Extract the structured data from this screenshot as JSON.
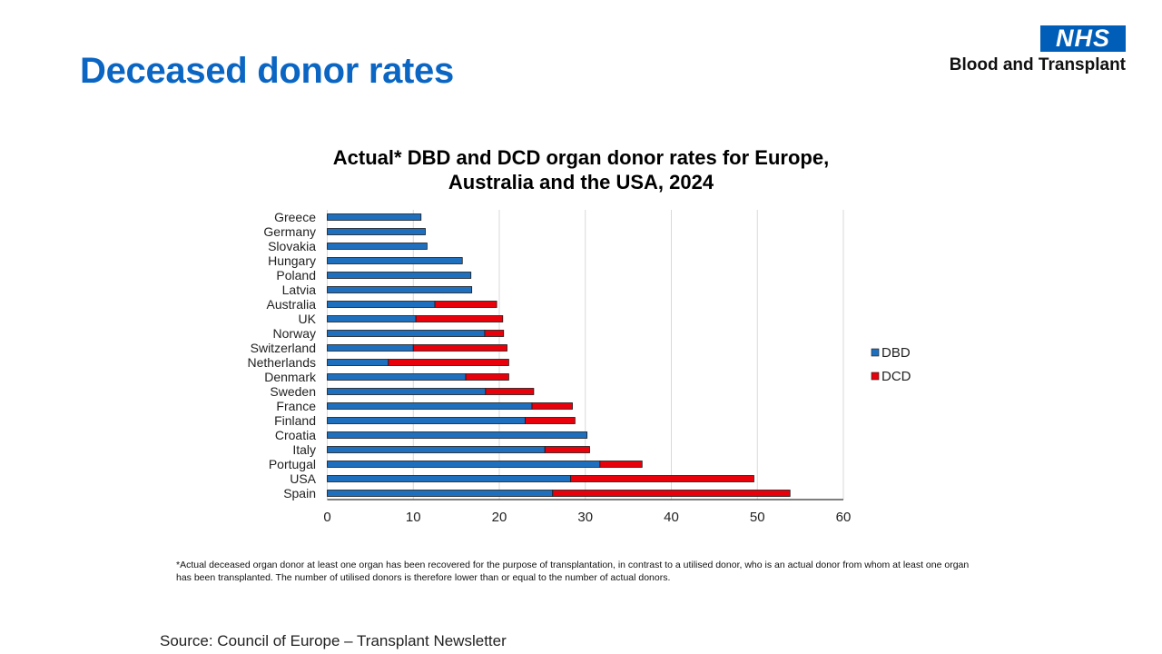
{
  "slide": {
    "title": "Deceased donor rates",
    "logo": {
      "badge": "NHS",
      "name": "Blood and Transplant"
    },
    "footnote": "*Actual deceased organ donor at least one organ has been recovered for the purpose of transplantation, in contrast to a utilised donor, who is an actual donor from whom at least one organ has been transplanted. The number of utilised donors is therefore lower than or equal to the number of actual donors.",
    "source": "Source: Council of Europe – Transplant Newsletter"
  },
  "chart_data": {
    "type": "bar",
    "orientation": "horizontal",
    "stacked": true,
    "title_lines": [
      "Actual* DBD and DCD organ donor rates for Europe,",
      "Australia and the USA, 2024"
    ],
    "categories": [
      "Greece",
      "Germany",
      "Slovakia",
      "Hungary",
      "Poland",
      "Latvia",
      "Australia",
      "UK",
      "Norway",
      "Switzerland",
      "Netherlands",
      "Denmark",
      "Sweden",
      "France",
      "Finland",
      "Croatia",
      "Italy",
      "Portugal",
      "USA",
      "Spain"
    ],
    "series": [
      {
        "name": "DBD",
        "color": "#1f6fbf",
        "values": [
          10.9,
          11.4,
          11.6,
          15.7,
          16.7,
          16.8,
          12.5,
          10.3,
          18.3,
          10.0,
          7.1,
          16.1,
          18.4,
          23.8,
          23.0,
          30.2,
          25.3,
          31.7,
          28.3,
          26.2
        ]
      },
      {
        "name": "DCD",
        "color": "#e8000b",
        "values": [
          0,
          0,
          0,
          0,
          0,
          0,
          7.2,
          10.1,
          2.2,
          10.9,
          14.0,
          5.0,
          5.6,
          4.7,
          5.8,
          0,
          5.2,
          4.9,
          21.3,
          27.6
        ]
      }
    ],
    "xlabel": "",
    "ylabel": "",
    "xlim": [
      0,
      60
    ],
    "xticks": [
      "0",
      "10",
      "20",
      "30",
      "40",
      "50",
      "60"
    ],
    "grid": true,
    "legend": "right"
  }
}
